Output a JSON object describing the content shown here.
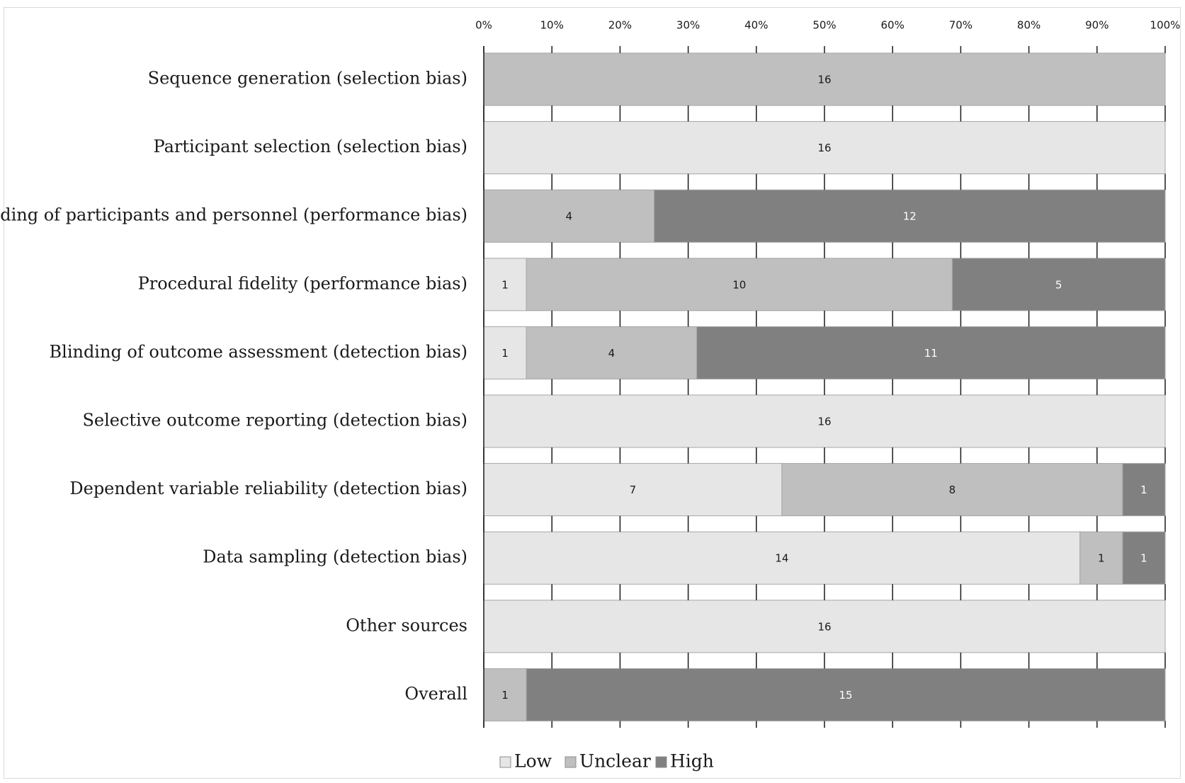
{
  "chart_data": {
    "type": "bar",
    "orientation": "horizontal",
    "stacked": "percent",
    "title": "",
    "xlabel": "",
    "ylabel": "",
    "xlim": [
      0,
      100
    ],
    "x_ticks": [
      "0%",
      "10%",
      "20%",
      "30%",
      "40%",
      "50%",
      "60%",
      "70%",
      "80%",
      "90%",
      "100%"
    ],
    "categories": [
      "Sequence generation (selection bias)",
      "Participant selection (selection bias)",
      "Blinding of participants and personnel (performance bias)",
      "Procedural fidelity (performance bias)",
      "Blinding of outcome assessment (detection bias)",
      "Selective outcome reporting (detection bias)",
      "Dependent variable reliability (detection bias)",
      "Data sampling (detection bias)",
      "Other sources",
      "Overall"
    ],
    "series": [
      {
        "name": "Low",
        "color": "#e6e6e6",
        "label_color": "#1a1a1a",
        "values": [
          0,
          16,
          0,
          1,
          1,
          16,
          7,
          14,
          16,
          0
        ]
      },
      {
        "name": "Unclear",
        "color": "#bfbfbf",
        "label_color": "#1a1a1a",
        "values": [
          16,
          0,
          4,
          10,
          4,
          0,
          8,
          1,
          0,
          1
        ]
      },
      {
        "name": "High",
        "color": "#808080",
        "label_color": "#ffffff",
        "values": [
          0,
          0,
          12,
          5,
          11,
          0,
          1,
          1,
          0,
          15
        ]
      }
    ],
    "legend_position": "bottom",
    "grid": false
  }
}
